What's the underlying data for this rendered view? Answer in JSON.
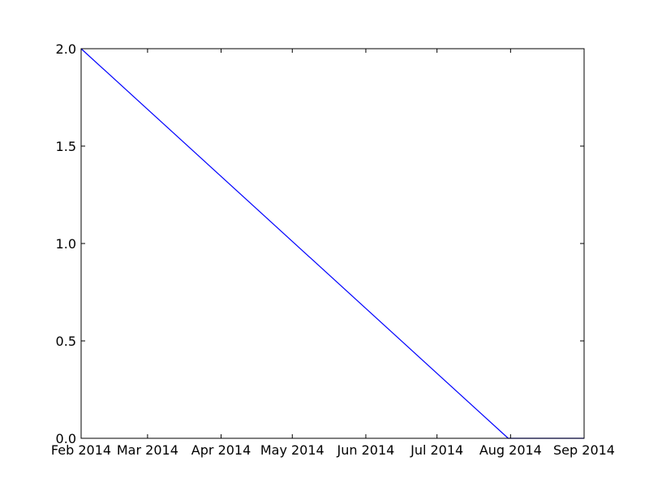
{
  "chart_data": {
    "type": "line",
    "title": "",
    "xlabel": "",
    "ylabel": "",
    "x_axis": {
      "type": "date",
      "range": [
        "2014-02-01",
        "2014-09-01"
      ],
      "ticks": [
        {
          "date": "2014-02-01",
          "label": "Feb 2014"
        },
        {
          "date": "2014-03-01",
          "label": "Mar 2014"
        },
        {
          "date": "2014-04-01",
          "label": "Apr 2014"
        },
        {
          "date": "2014-05-01",
          "label": "May 2014"
        },
        {
          "date": "2014-06-01",
          "label": "Jun 2014"
        },
        {
          "date": "2014-07-01",
          "label": "Jul 2014"
        },
        {
          "date": "2014-08-01",
          "label": "Aug 2014"
        },
        {
          "date": "2014-09-01",
          "label": "Sep 2014"
        }
      ]
    },
    "y_axis": {
      "range": [
        0,
        2
      ],
      "ticks": [
        {
          "value": 0.0,
          "label": "0.0"
        },
        {
          "value": 0.5,
          "label": "0.5"
        },
        {
          "value": 1.0,
          "label": "1.0"
        },
        {
          "value": 1.5,
          "label": "1.5"
        },
        {
          "value": 2.0,
          "label": "2.0"
        }
      ]
    },
    "grid": false,
    "series": [
      {
        "color": "#0000ff",
        "points": [
          {
            "x": "2014-02-01",
            "y": 2.0
          },
          {
            "x": "2014-07-31",
            "y": 0.0
          },
          {
            "x": "2014-09-01",
            "y": 0.0
          }
        ]
      }
    ]
  }
}
